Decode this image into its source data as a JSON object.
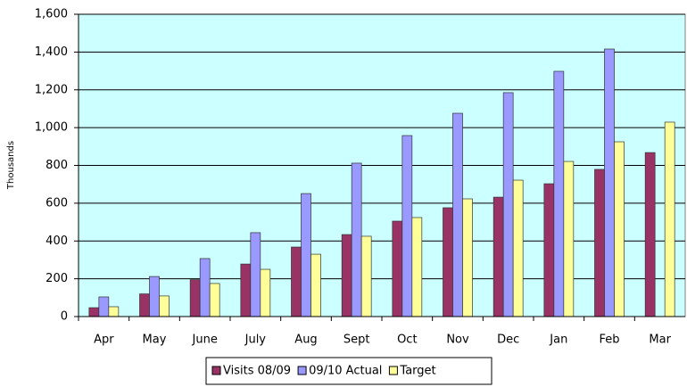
{
  "chart_data": {
    "type": "bar",
    "y_label": "Thousands",
    "categories": [
      "Apr",
      "May",
      "June",
      "July",
      "Aug",
      "Sept",
      "Oct",
      "Nov",
      "Dec",
      "Jan",
      "Feb",
      "Mar"
    ],
    "series": [
      {
        "name": "Visits 08/09",
        "color": "#993366",
        "values": [
          47,
          120,
          195,
          278,
          368,
          434,
          505,
          576,
          632,
          703,
          779,
          868
        ]
      },
      {
        "name": "09/10 Actual",
        "color": "#9999ff",
        "values": [
          104,
          212,
          307,
          444,
          651,
          812,
          958,
          1076,
          1185,
          1298,
          1416,
          null
        ]
      },
      {
        "name": "Target",
        "color": "#ffff99",
        "values": [
          52,
          109,
          175,
          250,
          330,
          425,
          524,
          623,
          722,
          821,
          925,
          1029
        ]
      }
    ],
    "ylim": [
      0,
      1600
    ],
    "yticks": [
      0,
      200,
      400,
      600,
      800,
      {
        "value": 1000,
        "label": "1,000"
      },
      {
        "value": 1200,
        "label": "1,200"
      },
      {
        "value": 1400,
        "label": "1,400"
      },
      {
        "value": 1600,
        "label": "1,600"
      }
    ],
    "grid": true,
    "plot_background": "#ccffff",
    "legend": "bottom"
  }
}
